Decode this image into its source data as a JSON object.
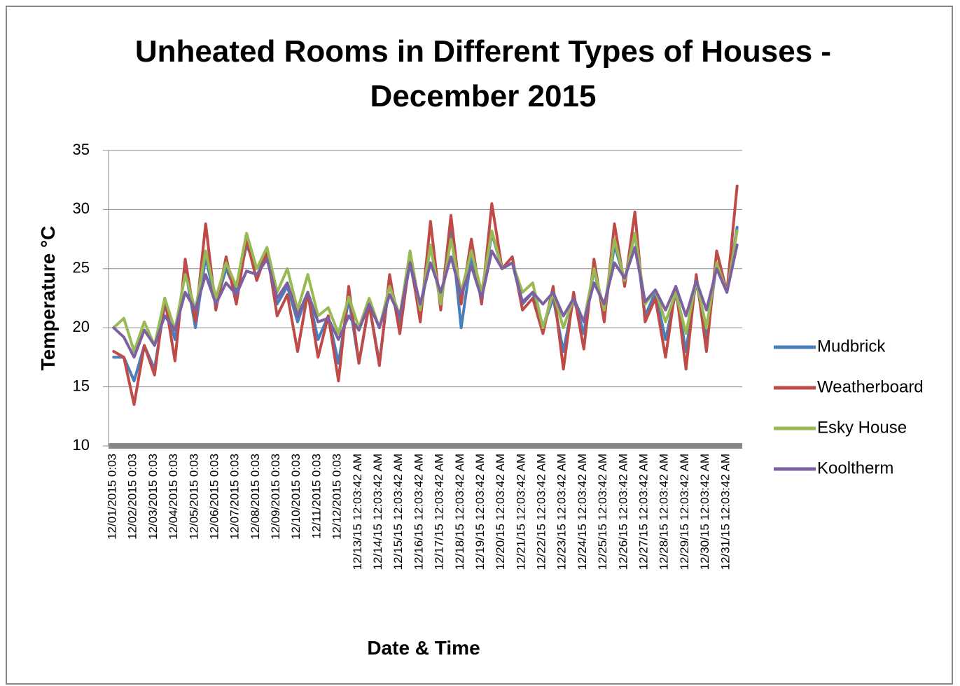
{
  "chart_data": {
    "type": "line",
    "title": "Unheated Rooms in Different Types of Houses - December 2015",
    "x_label": "Date & Time",
    "y_label": "Temperature °C",
    "categories": [
      "12/01/2015 0:03",
      null,
      "12/02/2015 0:03",
      null,
      "12/03/2015 0:03",
      null,
      "12/04/2015 0:03",
      null,
      "12/05/2015 0:03",
      null,
      "12/06/2015 0:03",
      null,
      "12/07/2015 0:03",
      null,
      "12/08/2015 0:03",
      null,
      "12/09/2015 0:03",
      null,
      "12/10/2015 0:03",
      null,
      "12/11/2015 0:03",
      null,
      "12/12/2015 0:03",
      null,
      "12/13/15 12:03:42 AM",
      null,
      "12/14/15 12:03:42 AM",
      null,
      "12/15/15 12:03:42 AM",
      null,
      "12/16/15 12:03:42 AM",
      null,
      "12/17/15 12:03:42 AM",
      null,
      "12/18/15 12:03:42 AM",
      null,
      "12/19/15 12:03:42 AM",
      null,
      "12/20/15 12:03:42 AM",
      null,
      "12/21/15 12:03:42 AM",
      null,
      "12/22/15 12:03:42 AM",
      null,
      "12/23/15 12:03:42 AM",
      null,
      "12/24/15 12:03:42 AM",
      null,
      "12/25/15 12:03:42 AM",
      null,
      "12/26/15 12:03:42 AM",
      null,
      "12/27/15 12:03:42 AM",
      null,
      "12/28/15 12:03:42 AM",
      null,
      "12/29/15 12:03:42 AM",
      null,
      "12/30/15 12:03:42 AM",
      null,
      "12/31/15 12:03:42 AM",
      null
    ],
    "series": [
      {
        "name": "Mudbrick",
        "color": "#4a7ebb",
        "values": [
          17.5,
          17.5,
          15.5,
          18.5,
          16.5,
          22,
          19,
          25,
          20,
          26,
          22,
          25,
          23,
          27,
          25,
          26,
          22,
          23.5,
          20.5,
          23,
          19,
          21,
          17,
          22.5,
          17,
          22,
          17,
          24,
          20.5,
          25.5,
          21,
          27,
          22,
          28.5,
          20,
          26,
          22.5,
          28,
          25,
          25.5,
          22,
          23,
          20,
          22.5,
          18,
          22.5,
          19.5,
          25,
          21,
          27,
          24,
          28,
          21,
          23,
          19,
          23,
          18,
          24,
          19,
          25.5,
          23,
          28.5
        ]
      },
      {
        "name": "Weatherboard",
        "color": "#be4b48",
        "values": [
          18,
          17.5,
          13.5,
          18.5,
          16,
          22.5,
          17.2,
          25.8,
          20.5,
          28.8,
          21.5,
          26,
          22,
          27.5,
          24,
          26.5,
          21,
          22.8,
          18,
          23,
          17.5,
          21,
          15.5,
          23.5,
          17,
          22,
          16.8,
          24.5,
          19.5,
          26,
          20.5,
          29,
          21.5,
          29.5,
          22,
          27.5,
          22,
          30.5,
          25,
          26,
          21.5,
          22.5,
          19.5,
          23.5,
          16.5,
          23,
          18.2,
          25.8,
          20.5,
          28.8,
          23.5,
          29.8,
          20.5,
          22.5,
          17.5,
          23.5,
          16.5,
          24.5,
          18,
          26.5,
          23,
          32
        ]
      },
      {
        "name": "Esky House",
        "color": "#98b954",
        "values": [
          20,
          20.8,
          18,
          20.5,
          18.5,
          22.5,
          19.8,
          24.5,
          21.5,
          26.5,
          22.5,
          25.5,
          23.5,
          28,
          25,
          26.8,
          23,
          25,
          21.5,
          24.5,
          21,
          21.7,
          19.5,
          22.6,
          20,
          22.5,
          20,
          23.5,
          21,
          26.5,
          21.5,
          27,
          22,
          27.5,
          23,
          26.5,
          23,
          28.2,
          25,
          25.5,
          23,
          23.8,
          20,
          23,
          20,
          22.5,
          20.5,
          25,
          21.5,
          27.5,
          24,
          28,
          22,
          23.2,
          20.5,
          23,
          19.5,
          24,
          20,
          25.5,
          23,
          28.2
        ]
      },
      {
        "name": "Kooltherm",
        "color": "#7d60a0",
        "values": [
          20,
          19.2,
          17.5,
          19.8,
          18.5,
          21,
          19.8,
          23,
          21.5,
          24.5,
          22,
          23.8,
          22.8,
          24.8,
          24.5,
          25.8,
          22.5,
          23.8,
          21,
          23,
          20.5,
          20.8,
          19,
          21,
          19.8,
          22,
          20,
          22.8,
          21,
          25.5,
          22,
          25.5,
          23,
          26,
          22.8,
          25.2,
          22.5,
          26.5,
          25,
          25.5,
          22.2,
          23,
          22,
          23,
          21,
          22.5,
          20.5,
          23.8,
          22,
          25.5,
          24.2,
          26.8,
          22.2,
          23.2,
          21.5,
          23.5,
          21,
          24,
          21.5,
          25,
          23,
          27
        ]
      }
    ],
    "ylim": [
      10,
      35
    ],
    "yticks": [
      10,
      15,
      20,
      25,
      30,
      35
    ],
    "grid": true,
    "legend": "right"
  }
}
